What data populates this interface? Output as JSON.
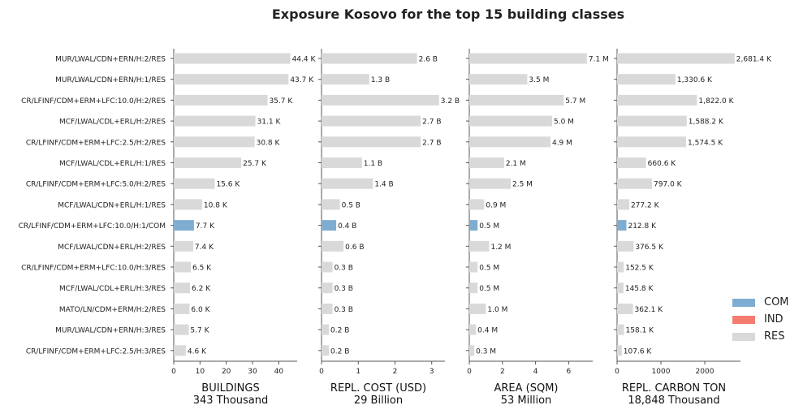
{
  "title": "Exposure Kosovo for the top 15 building classes",
  "colors": {
    "COM": "#7fadd1",
    "IND": "#f47c6e",
    "RES": "#d9d9d9"
  },
  "legend": [
    {
      "label": "COM",
      "color": "#7fadd1"
    },
    {
      "label": "IND",
      "color": "#f47c6e"
    },
    {
      "label": "RES",
      "color": "#d9d9d9"
    }
  ],
  "chart_data": [
    {
      "type": "bar",
      "orientation": "horizontal",
      "xlabel": "BUILDINGS",
      "total_label": "343 Thousand",
      "xlim": [
        0,
        47
      ],
      "xticks": [
        0,
        10,
        20,
        30,
        40
      ],
      "categories": [
        "MUR/LWAL/CDN+ERN/H:2/RES",
        "MUR/LWAL/CDN+ERN/H:1/RES",
        "CR/LFINF/CDM+ERM+LFC:10.0/H:2/RES",
        "MCF/LWAL/CDL+ERL/H:2/RES",
        "CR/LFINF/CDM+ERM+LFC:2.5/H:2/RES",
        "MCF/LWAL/CDL+ERL/H:1/RES",
        "CR/LFINF/CDM+ERM+LFC:5.0/H:2/RES",
        "MCF/LWAL/CDN+ERL/H:1/RES",
        "CR/LFINF/CDM+ERM+LFC:10.0/H:1/COM",
        "MCF/LWAL/CDN+ERL/H:2/RES",
        "CR/LFINF/CDM+ERM+LFC:10.0/H:3/RES",
        "MCF/LWAL/CDL+ERL/H:3/RES",
        "MATO/LN/CDM+ERM/H:2/RES",
        "MUR/LWAL/CDN+ERN/H:3/RES",
        "CR/LFINF/CDM+ERM+LFC:2.5/H:3/RES"
      ],
      "occupancy": [
        "RES",
        "RES",
        "RES",
        "RES",
        "RES",
        "RES",
        "RES",
        "RES",
        "COM",
        "RES",
        "RES",
        "RES",
        "RES",
        "RES",
        "RES"
      ],
      "values": [
        44.4,
        43.7,
        35.7,
        31.1,
        30.8,
        25.7,
        15.6,
        10.8,
        7.7,
        7.4,
        6.5,
        6.2,
        6.0,
        5.7,
        4.6
      ],
      "labels": [
        "44.4 K",
        "43.7 K",
        "35.7 K",
        "31.1 K",
        "30.8 K",
        "25.7 K",
        "15.6 K",
        "10.8 K",
        "7.7 K",
        "7.4 K",
        "6.5 K",
        "6.2 K",
        "6.0 K",
        "5.7 K",
        "4.6 K"
      ]
    },
    {
      "type": "bar",
      "orientation": "horizontal",
      "xlabel": "REPL. COST (USD)",
      "total_label": "29 Billion",
      "xlim": [
        0,
        3.36
      ],
      "xticks": [
        0,
        1,
        2,
        3
      ],
      "values": [
        2.6,
        1.3,
        3.2,
        2.7,
        2.7,
        1.1,
        1.4,
        0.5,
        0.4,
        0.6,
        0.3,
        0.3,
        0.3,
        0.2,
        0.2
      ],
      "labels": [
        "2.6 B",
        "1.3 B",
        "3.2 B",
        "2.7 B",
        "2.7 B",
        "1.1 B",
        "1.4 B",
        "0.5 B",
        "0.4 B",
        "0.6 B",
        "0.3 B",
        "0.3 B",
        "0.3 B",
        "0.2 B",
        "0.2 B"
      ]
    },
    {
      "type": "bar",
      "orientation": "horizontal",
      "xlabel": "AREA (SQM)",
      "total_label": "53 Million",
      "xlim": [
        0,
        7.45
      ],
      "xticks": [
        0,
        2,
        4,
        6
      ],
      "values": [
        7.1,
        3.5,
        5.7,
        5.0,
        4.9,
        2.1,
        2.5,
        0.9,
        0.5,
        1.2,
        0.5,
        0.5,
        1.0,
        0.4,
        0.3
      ],
      "labels": [
        "7.1 M",
        "3.5 M",
        "5.7 M",
        "5.0 M",
        "4.9 M",
        "2.1 M",
        "2.5 M",
        "0.9 M",
        "0.5 M",
        "1.2 M",
        "0.5 M",
        "0.5 M",
        "1.0 M",
        "0.4 M",
        "0.3 M"
      ]
    },
    {
      "type": "bar",
      "orientation": "horizontal",
      "xlabel": "REPL. CARBON TON",
      "total_label": "18,848 Thousand",
      "xlim": [
        0,
        2815
      ],
      "xticks": [
        0,
        1000,
        2000
      ],
      "values": [
        2681.4,
        1330.6,
        1822.0,
        1588.2,
        1574.5,
        660.6,
        797.0,
        277.2,
        212.8,
        376.5,
        152.5,
        145.8,
        362.1,
        158.1,
        107.6
      ],
      "labels": [
        "2,681.4 K",
        "1,330.6 K",
        "1,822.0 K",
        "1,588.2 K",
        "1,574.5 K",
        "660.6 K",
        "797.0 K",
        "277.2 K",
        "212.8 K",
        "376.5 K",
        "152.5 K",
        "145.8 K",
        "362.1 K",
        "158.1 K",
        "107.6 K"
      ]
    }
  ]
}
